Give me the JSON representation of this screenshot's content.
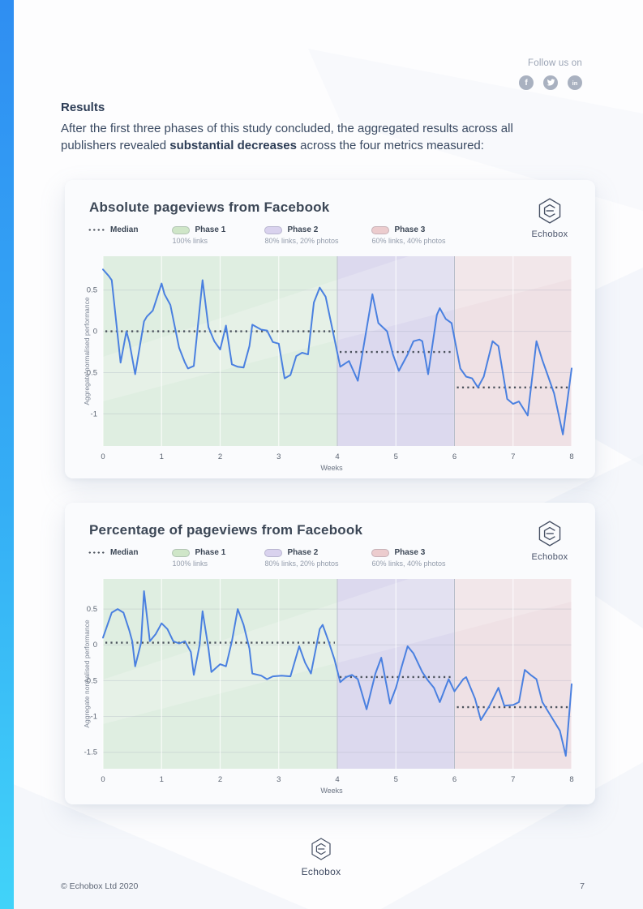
{
  "page": {
    "colors": {
      "accent_top": "#2f8ef2",
      "accent_bottom": "#41d3f9",
      "line_blue": "#4a80e0",
      "median_gray": "#4b525c"
    }
  },
  "header": {
    "follow_text": "Follow us on",
    "social": [
      {
        "name": "facebook"
      },
      {
        "name": "twitter"
      },
      {
        "name": "linkedin"
      }
    ]
  },
  "results": {
    "heading": "Results",
    "body_before": "After the first three phases of this study concluded, the aggregated results across all publishers revealed ",
    "body_bold": "substantial decreases",
    "body_after": " across the four metrics measured:"
  },
  "chart_data": [
    {
      "type": "line",
      "title": "Absolute pageviews from Facebook",
      "xlabel": "Weeks",
      "ylabel": "Aggregate normalised performance",
      "xlim": [
        0,
        8
      ],
      "ylim": [
        -1.39,
        0.91
      ],
      "xticks": [
        0,
        1,
        2,
        3,
        4,
        5,
        6,
        7,
        8
      ],
      "yticks": [
        0.5,
        0,
        -0.5,
        -1
      ],
      "grid": true,
      "legend_position": "top-left",
      "logo_text": "Echobox",
      "legend": {
        "median_label": "Median",
        "phases": [
          {
            "label": "Phase 1",
            "sub": "100% links",
            "color": "#cfe6c8"
          },
          {
            "label": "Phase 2",
            "sub": "80% links, 20% photos",
            "color": "#d9d2ee"
          },
          {
            "label": "Phase 3",
            "sub": "60% links, 40% photos",
            "color": "#ecccce"
          }
        ]
      },
      "phases": [
        {
          "name": "Phase 1",
          "x0": 0,
          "x1": 4,
          "fill": "#dfeee1"
        },
        {
          "name": "Phase 2",
          "x0": 4,
          "x1": 6,
          "fill": "#dcd9ee"
        },
        {
          "name": "Phase 3",
          "x0": 6,
          "x1": 8,
          "fill": "#efe1e5"
        }
      ],
      "medians": [
        {
          "x0": 0,
          "x1": 4,
          "value": 0.0
        },
        {
          "x0": 4,
          "x1": 6,
          "value": -0.25
        },
        {
          "x0": 6,
          "x1": 8,
          "value": -0.68
        }
      ],
      "series": {
        "name": "Aggregate normalised performance",
        "color": "#4a80e0",
        "points": [
          [
            0,
            0.75
          ],
          [
            0.1,
            0.67
          ],
          [
            0.15,
            0.62
          ],
          [
            0.3,
            -0.38
          ],
          [
            0.4,
            0.0
          ],
          [
            0.45,
            -0.13
          ],
          [
            0.55,
            -0.52
          ],
          [
            0.7,
            0.12
          ],
          [
            0.75,
            0.18
          ],
          [
            0.85,
            0.25
          ],
          [
            1.0,
            0.58
          ],
          [
            1.05,
            0.45
          ],
          [
            1.15,
            0.32
          ],
          [
            1.3,
            -0.2
          ],
          [
            1.4,
            -0.38
          ],
          [
            1.45,
            -0.45
          ],
          [
            1.55,
            -0.42
          ],
          [
            1.7,
            0.62
          ],
          [
            1.8,
            0.05
          ],
          [
            1.9,
            -0.12
          ],
          [
            2.0,
            -0.22
          ],
          [
            2.1,
            0.07
          ],
          [
            2.2,
            -0.4
          ],
          [
            2.3,
            -0.43
          ],
          [
            2.4,
            -0.44
          ],
          [
            2.5,
            -0.18
          ],
          [
            2.55,
            0.08
          ],
          [
            2.7,
            0.02
          ],
          [
            2.8,
            0.01
          ],
          [
            2.9,
            -0.13
          ],
          [
            3.0,
            -0.15
          ],
          [
            3.1,
            -0.57
          ],
          [
            3.2,
            -0.53
          ],
          [
            3.3,
            -0.3
          ],
          [
            3.4,
            -0.26
          ],
          [
            3.5,
            -0.28
          ],
          [
            3.6,
            0.35
          ],
          [
            3.7,
            0.53
          ],
          [
            3.8,
            0.42
          ],
          [
            4.05,
            -0.43
          ],
          [
            4.2,
            -0.36
          ],
          [
            4.35,
            -0.6
          ],
          [
            4.6,
            0.45
          ],
          [
            4.7,
            0.1
          ],
          [
            4.85,
            0.0
          ],
          [
            4.95,
            -0.28
          ],
          [
            5.05,
            -0.48
          ],
          [
            5.2,
            -0.28
          ],
          [
            5.3,
            -0.12
          ],
          [
            5.4,
            -0.1
          ],
          [
            5.45,
            -0.12
          ],
          [
            5.55,
            -0.52
          ],
          [
            5.7,
            0.2
          ],
          [
            5.75,
            0.28
          ],
          [
            5.85,
            0.15
          ],
          [
            5.95,
            0.1
          ],
          [
            6.1,
            -0.45
          ],
          [
            6.2,
            -0.55
          ],
          [
            6.3,
            -0.57
          ],
          [
            6.4,
            -0.68
          ],
          [
            6.5,
            -0.55
          ],
          [
            6.65,
            -0.12
          ],
          [
            6.75,
            -0.18
          ],
          [
            6.9,
            -0.82
          ],
          [
            7.0,
            -0.88
          ],
          [
            7.1,
            -0.85
          ],
          [
            7.25,
            -1.02
          ],
          [
            7.4,
            -0.12
          ],
          [
            7.5,
            -0.35
          ],
          [
            7.6,
            -0.55
          ],
          [
            7.7,
            -0.75
          ],
          [
            7.85,
            -1.25
          ],
          [
            8.0,
            -0.45
          ]
        ]
      }
    },
    {
      "type": "line",
      "title": "Percentage of pageviews from Facebook",
      "xlabel": "Weeks",
      "ylabel": "Aggregate normalised performance",
      "xlim": [
        0,
        8
      ],
      "ylim": [
        -1.73,
        0.92
      ],
      "xticks": [
        0,
        1,
        2,
        3,
        4,
        5,
        6,
        7,
        8
      ],
      "yticks": [
        0.5,
        0,
        -0.5,
        -1,
        -1.5
      ],
      "grid": true,
      "legend_position": "top-left",
      "logo_text": "Echobox",
      "legend": {
        "median_label": "Median",
        "phases": [
          {
            "label": "Phase 1",
            "sub": "100% links",
            "color": "#cfe6c8"
          },
          {
            "label": "Phase 2",
            "sub": "80% links, 20% photos",
            "color": "#d9d2ee"
          },
          {
            "label": "Phase 3",
            "sub": "60% links, 40% photos",
            "color": "#ecccce"
          }
        ]
      },
      "phases": [
        {
          "name": "Phase 1",
          "x0": 0,
          "x1": 4,
          "fill": "#dfeee1"
        },
        {
          "name": "Phase 2",
          "x0": 4,
          "x1": 6,
          "fill": "#dcd9ee"
        },
        {
          "name": "Phase 3",
          "x0": 6,
          "x1": 8,
          "fill": "#efe1e5"
        }
      ],
      "medians": [
        {
          "x0": 0,
          "x1": 4,
          "value": 0.03
        },
        {
          "x0": 4,
          "x1": 6,
          "value": -0.45
        },
        {
          "x0": 6,
          "x1": 8,
          "value": -0.87
        }
      ],
      "series": {
        "name": "Aggregate normalised performance",
        "color": "#4a80e0",
        "points": [
          [
            0,
            0.1
          ],
          [
            0.15,
            0.45
          ],
          [
            0.25,
            0.5
          ],
          [
            0.35,
            0.45
          ],
          [
            0.45,
            0.2
          ],
          [
            0.5,
            0.05
          ],
          [
            0.55,
            -0.3
          ],
          [
            0.65,
            0.03
          ],
          [
            0.7,
            0.75
          ],
          [
            0.8,
            0.05
          ],
          [
            0.9,
            0.15
          ],
          [
            1.0,
            0.3
          ],
          [
            1.1,
            0.22
          ],
          [
            1.2,
            0.05
          ],
          [
            1.3,
            0.02
          ],
          [
            1.4,
            0.05
          ],
          [
            1.5,
            -0.1
          ],
          [
            1.55,
            -0.42
          ],
          [
            1.65,
            0.0
          ],
          [
            1.7,
            0.47
          ],
          [
            1.8,
            -0.05
          ],
          [
            1.85,
            -0.38
          ],
          [
            2.0,
            -0.27
          ],
          [
            2.1,
            -0.3
          ],
          [
            2.2,
            0.05
          ],
          [
            2.3,
            0.5
          ],
          [
            2.4,
            0.28
          ],
          [
            2.5,
            -0.05
          ],
          [
            2.55,
            -0.4
          ],
          [
            2.7,
            -0.43
          ],
          [
            2.8,
            -0.48
          ],
          [
            2.9,
            -0.44
          ],
          [
            3.05,
            -0.43
          ],
          [
            3.2,
            -0.44
          ],
          [
            3.35,
            -0.02
          ],
          [
            3.45,
            -0.25
          ],
          [
            3.55,
            -0.4
          ],
          [
            3.7,
            0.22
          ],
          [
            3.75,
            0.28
          ],
          [
            3.85,
            0.05
          ],
          [
            3.95,
            -0.2
          ],
          [
            4.05,
            -0.52
          ],
          [
            4.15,
            -0.45
          ],
          [
            4.25,
            -0.42
          ],
          [
            4.35,
            -0.48
          ],
          [
            4.5,
            -0.9
          ],
          [
            4.65,
            -0.4
          ],
          [
            4.75,
            -0.18
          ],
          [
            4.9,
            -0.82
          ],
          [
            5.0,
            -0.6
          ],
          [
            5.1,
            -0.3
          ],
          [
            5.2,
            -0.02
          ],
          [
            5.3,
            -0.12
          ],
          [
            5.45,
            -0.38
          ],
          [
            5.55,
            -0.5
          ],
          [
            5.65,
            -0.6
          ],
          [
            5.75,
            -0.8
          ],
          [
            5.9,
            -0.48
          ],
          [
            6.0,
            -0.65
          ],
          [
            6.15,
            -0.48
          ],
          [
            6.2,
            -0.45
          ],
          [
            6.35,
            -0.75
          ],
          [
            6.45,
            -1.05
          ],
          [
            6.6,
            -0.85
          ],
          [
            6.75,
            -0.6
          ],
          [
            6.85,
            -0.85
          ],
          [
            7.0,
            -0.84
          ],
          [
            7.1,
            -0.8
          ],
          [
            7.2,
            -0.35
          ],
          [
            7.3,
            -0.42
          ],
          [
            7.4,
            -0.48
          ],
          [
            7.5,
            -0.8
          ],
          [
            7.65,
            -1.0
          ],
          [
            7.8,
            -1.2
          ],
          [
            7.9,
            -1.55
          ],
          [
            8.0,
            -0.55
          ]
        ]
      }
    }
  ],
  "footer": {
    "logo_text": "Echobox",
    "copyright": "© Echobox Ltd 2020",
    "page_number": "7"
  }
}
